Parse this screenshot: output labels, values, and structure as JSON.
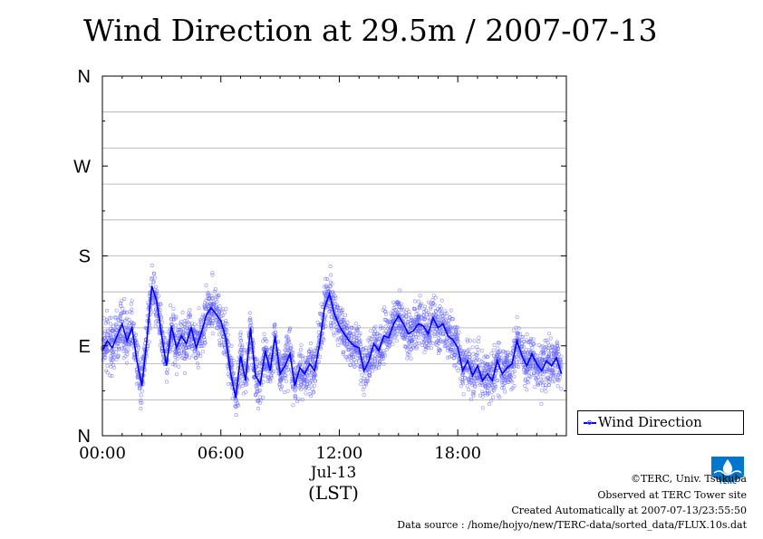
{
  "title": "Wind Direction at 29.5m / 2007-07-13",
  "legend": {
    "label": "Wind Direction"
  },
  "credits": {
    "copyright": "©TERC, Univ. Tsukuba",
    "observed": "Observed at TERC Tower site",
    "created": "Created Automatically at 2007-07-13/23:55:50",
    "source": "Data source : /home/hojyo/new/TERC-data/sorted_data/FLUX.10s.dat"
  },
  "logo": {
    "text": "TERC"
  },
  "colors": {
    "line": "#0000ff",
    "points": "#6666ff",
    "grid": "#aaaaaa",
    "axis": "#000000"
  },
  "chart_data": {
    "type": "line",
    "title": "Wind Direction at 29.5m / 2007-07-13",
    "xlabel": "(LST)",
    "x_date_label": "Jul-13",
    "x_unit": "hour",
    "xlim": [
      0,
      23.5
    ],
    "x_ticks": [
      0,
      6,
      12,
      18
    ],
    "x_tick_labels": [
      "00:00",
      "06:00",
      "12:00",
      "18:00"
    ],
    "ylim": [
      0,
      360
    ],
    "y_ticks": [
      0,
      90,
      180,
      270,
      360
    ],
    "y_tick_labels": [
      "N",
      "E",
      "S",
      "W",
      "N"
    ],
    "grid": true,
    "legend_position": "right-bottom",
    "scatter_spread_deg": 22,
    "series": [
      {
        "name": "Wind Direction",
        "style": "line+points",
        "x": [
          0,
          0.25,
          0.5,
          0.75,
          1,
          1.25,
          1.5,
          1.75,
          2,
          2.25,
          2.5,
          2.75,
          3,
          3.25,
          3.5,
          3.75,
          4,
          4.25,
          4.5,
          4.75,
          5,
          5.25,
          5.5,
          5.75,
          6,
          6.25,
          6.5,
          6.75,
          7,
          7.25,
          7.5,
          7.75,
          8,
          8.25,
          8.5,
          8.75,
          9,
          9.25,
          9.5,
          9.75,
          10,
          10.25,
          10.5,
          10.75,
          11,
          11.25,
          11.5,
          11.75,
          12,
          12.25,
          12.5,
          12.75,
          13,
          13.25,
          13.5,
          13.75,
          14,
          14.25,
          14.5,
          14.75,
          15,
          15.25,
          15.5,
          15.75,
          16,
          16.25,
          16.5,
          16.75,
          17,
          17.25,
          17.5,
          17.75,
          18,
          18.25,
          18.5,
          18.75,
          19,
          19.25,
          19.5,
          19.75,
          20,
          20.25,
          20.5,
          20.75,
          21,
          21.25,
          21.5,
          21.75,
          22,
          22.25,
          22.5,
          22.75,
          23,
          23.25
        ],
        "y": [
          85,
          95,
          88,
          100,
          112,
          95,
          108,
          75,
          50,
          95,
          150,
          135,
          100,
          70,
          110,
          88,
          100,
          92,
          108,
          88,
          102,
          120,
          128,
          122,
          115,
          98,
          62,
          38,
          80,
          55,
          108,
          60,
          52,
          85,
          65,
          100,
          62,
          70,
          82,
          50,
          68,
          62,
          72,
          65,
          92,
          128,
          142,
          122,
          110,
          102,
          95,
          90,
          88,
          65,
          75,
          92,
          85,
          100,
          98,
          112,
          120,
          112,
          102,
          105,
          112,
          110,
          102,
          118,
          108,
          112,
          100,
          96,
          88,
          65,
          75,
          60,
          70,
          55,
          62,
          55,
          75,
          62,
          68,
          72,
          95,
          80,
          70,
          82,
          72,
          65,
          75,
          70,
          78,
          62
        ]
      }
    ]
  }
}
